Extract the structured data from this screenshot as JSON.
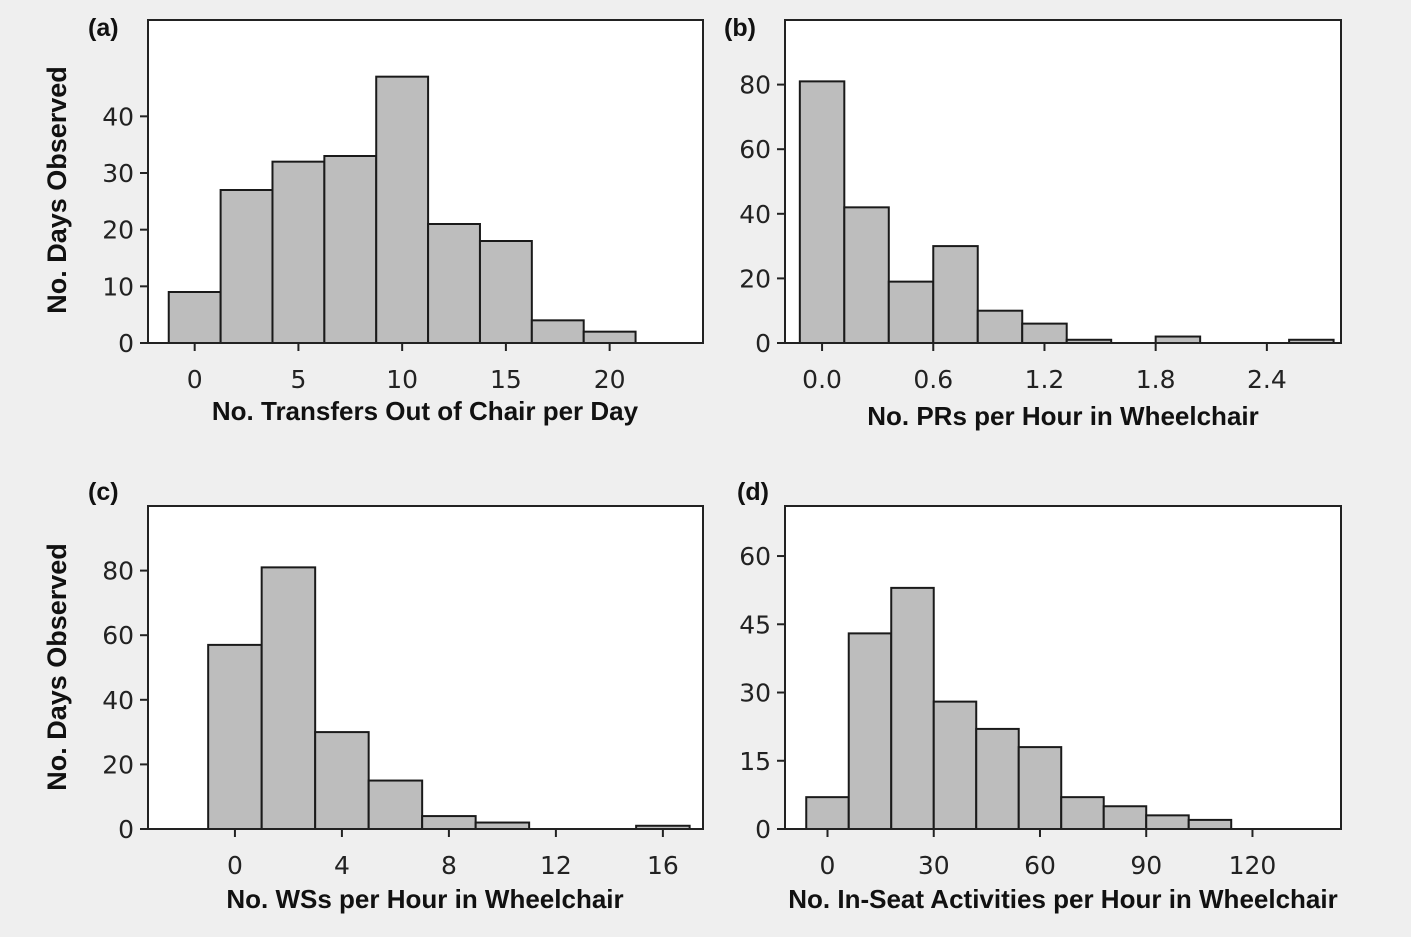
{
  "figure": {
    "background": "#efefef",
    "plot_background": "#ffffff",
    "bar_fill": "#bdbdbd",
    "bar_stroke": "#1a1a1a"
  },
  "chart_data": [
    {
      "panel": "(a)",
      "type": "bar",
      "xlabel": "No. Transfers Out of Chair per Day",
      "ylabel": "No. Days Observed",
      "bin_width": 2.5,
      "bin_starts": [
        -1.25,
        1.25,
        3.75,
        6.25,
        8.75,
        11.25,
        13.75,
        16.25,
        18.75
      ],
      "values": [
        9,
        27,
        32,
        33,
        47,
        21,
        18,
        4,
        2
      ],
      "xlim": [
        -2.25,
        24.5
      ],
      "ylim": [
        0,
        57
      ],
      "xticks": [
        0,
        5,
        10,
        15,
        20
      ],
      "yticks": [
        0,
        10,
        20,
        30,
        40
      ],
      "xtick_labels": [
        "0",
        "5",
        "10",
        "15",
        "20"
      ],
      "ytick_labels": [
        "0",
        "10",
        "20",
        "30",
        "40"
      ]
    },
    {
      "panel": "(b)",
      "type": "bar",
      "xlabel": "No. PRs per Hour in Wheelchair",
      "ylabel": "",
      "bin_width": 0.24,
      "bin_starts": [
        -0.12,
        0.12,
        0.36,
        0.6,
        0.84,
        1.08,
        1.32,
        1.56,
        1.8,
        2.04,
        2.28,
        2.52
      ],
      "values": [
        81,
        42,
        19,
        30,
        10,
        6,
        1,
        0,
        2,
        0,
        0,
        1
      ],
      "xlim": [
        -0.2,
        2.8
      ],
      "ylim": [
        0,
        100
      ],
      "xticks": [
        0.0,
        0.6,
        1.2,
        1.8,
        2.4
      ],
      "yticks": [
        0,
        20,
        40,
        60,
        80
      ],
      "xtick_labels": [
        "0.0",
        "0.6",
        "1.2",
        "1.8",
        "2.4"
      ],
      "ytick_labels": [
        "0",
        "20",
        "40",
        "60",
        "80"
      ]
    },
    {
      "panel": "(c)",
      "type": "bar",
      "xlabel": "No. WSs per Hour in Wheelchair",
      "ylabel": "No. Days Observed",
      "bin_width": 2,
      "bin_starts": [
        -1,
        1,
        3,
        5,
        7,
        9,
        11,
        13,
        15
      ],
      "values": [
        57,
        81,
        30,
        15,
        4,
        2,
        0,
        0,
        1
      ],
      "xlim": [
        -3.25,
        17.5
      ],
      "ylim": [
        0,
        100
      ],
      "xticks": [
        0,
        4,
        8,
        12,
        16
      ],
      "yticks": [
        0,
        20,
        40,
        60,
        80
      ],
      "xtick_labels": [
        "0",
        "4",
        "8",
        "12",
        "16"
      ],
      "ytick_labels": [
        "0",
        "20",
        "40",
        "60",
        "80"
      ]
    },
    {
      "panel": "(d)",
      "type": "bar",
      "xlabel": "No. In-Seat Activities per Hour in Wheelchair",
      "ylabel": "",
      "bin_width": 12,
      "bin_starts": [
        -6,
        6,
        18,
        30,
        42,
        54,
        66,
        78,
        90,
        102,
        114,
        126
      ],
      "values": [
        7,
        43,
        53,
        28,
        22,
        18,
        7,
        5,
        3,
        2,
        0,
        0
      ],
      "xlim": [
        -12,
        145
      ],
      "ylim": [
        0,
        71
      ],
      "xticks": [
        0,
        30,
        60,
        90,
        120
      ],
      "yticks": [
        0,
        15,
        30,
        45,
        60
      ],
      "xtick_labels": [
        "0",
        "30",
        "60",
        "90",
        "120"
      ],
      "ytick_labels": [
        "0",
        "15",
        "30",
        "45",
        "60"
      ]
    }
  ]
}
